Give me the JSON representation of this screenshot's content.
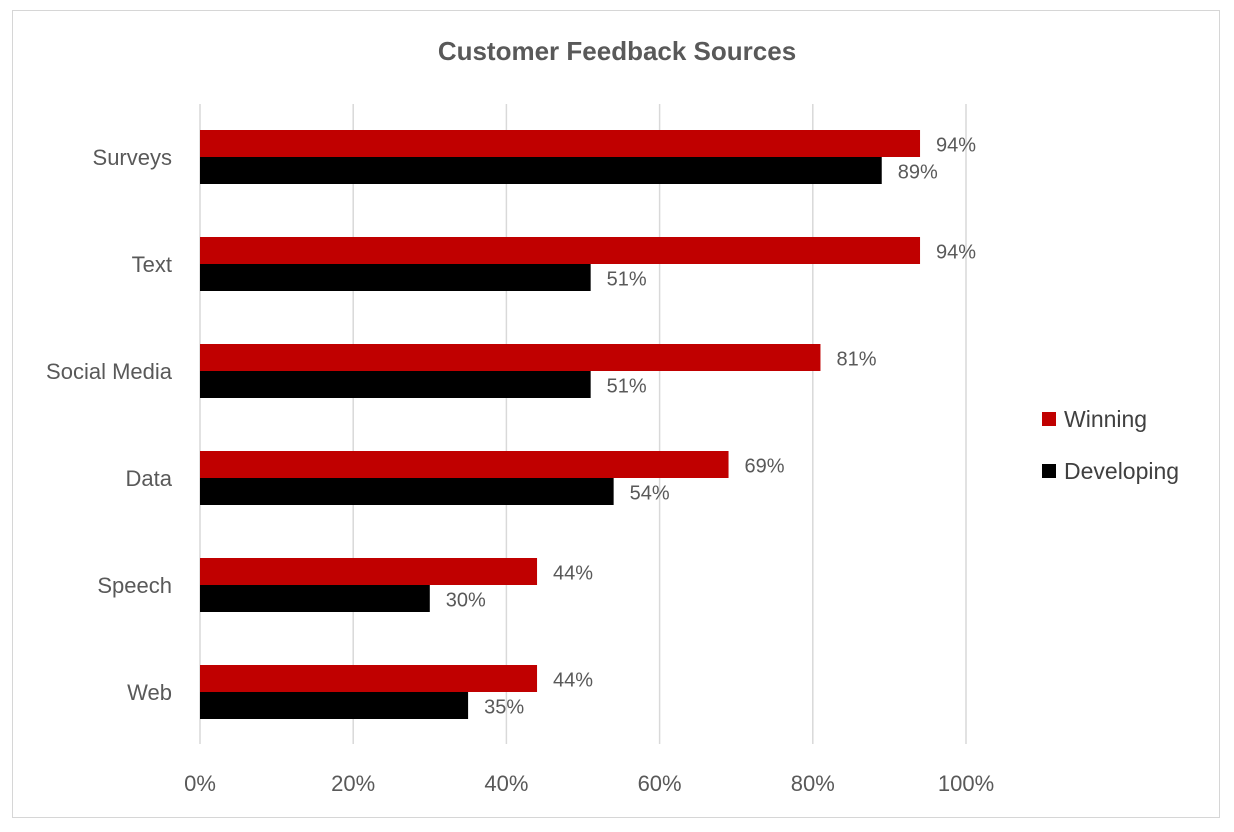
{
  "chart_data": {
    "type": "bar",
    "orientation": "horizontal",
    "title": "Customer Feedback Sources",
    "categories": [
      "Surveys",
      "Text",
      "Social Media",
      "Data",
      "Speech",
      "Web"
    ],
    "series": [
      {
        "name": "Winning",
        "color": "#c00000",
        "values": [
          94,
          94,
          81,
          69,
          44,
          44
        ],
        "labels": [
          "94%",
          "94%",
          "81%",
          "69%",
          "44%",
          "44%"
        ]
      },
      {
        "name": "Developing",
        "color": "#000000",
        "values": [
          89,
          51,
          51,
          54,
          30,
          35
        ],
        "labels": [
          "89%",
          "51%",
          "51%",
          "54%",
          "30%",
          "35%"
        ]
      }
    ],
    "xlim": [
      0,
      100
    ],
    "xticks": [
      "0%",
      "20%",
      "40%",
      "60%",
      "80%",
      "100%"
    ],
    "xlabel": "",
    "ylabel": "",
    "grid": "vertical",
    "legend_position": "right"
  }
}
